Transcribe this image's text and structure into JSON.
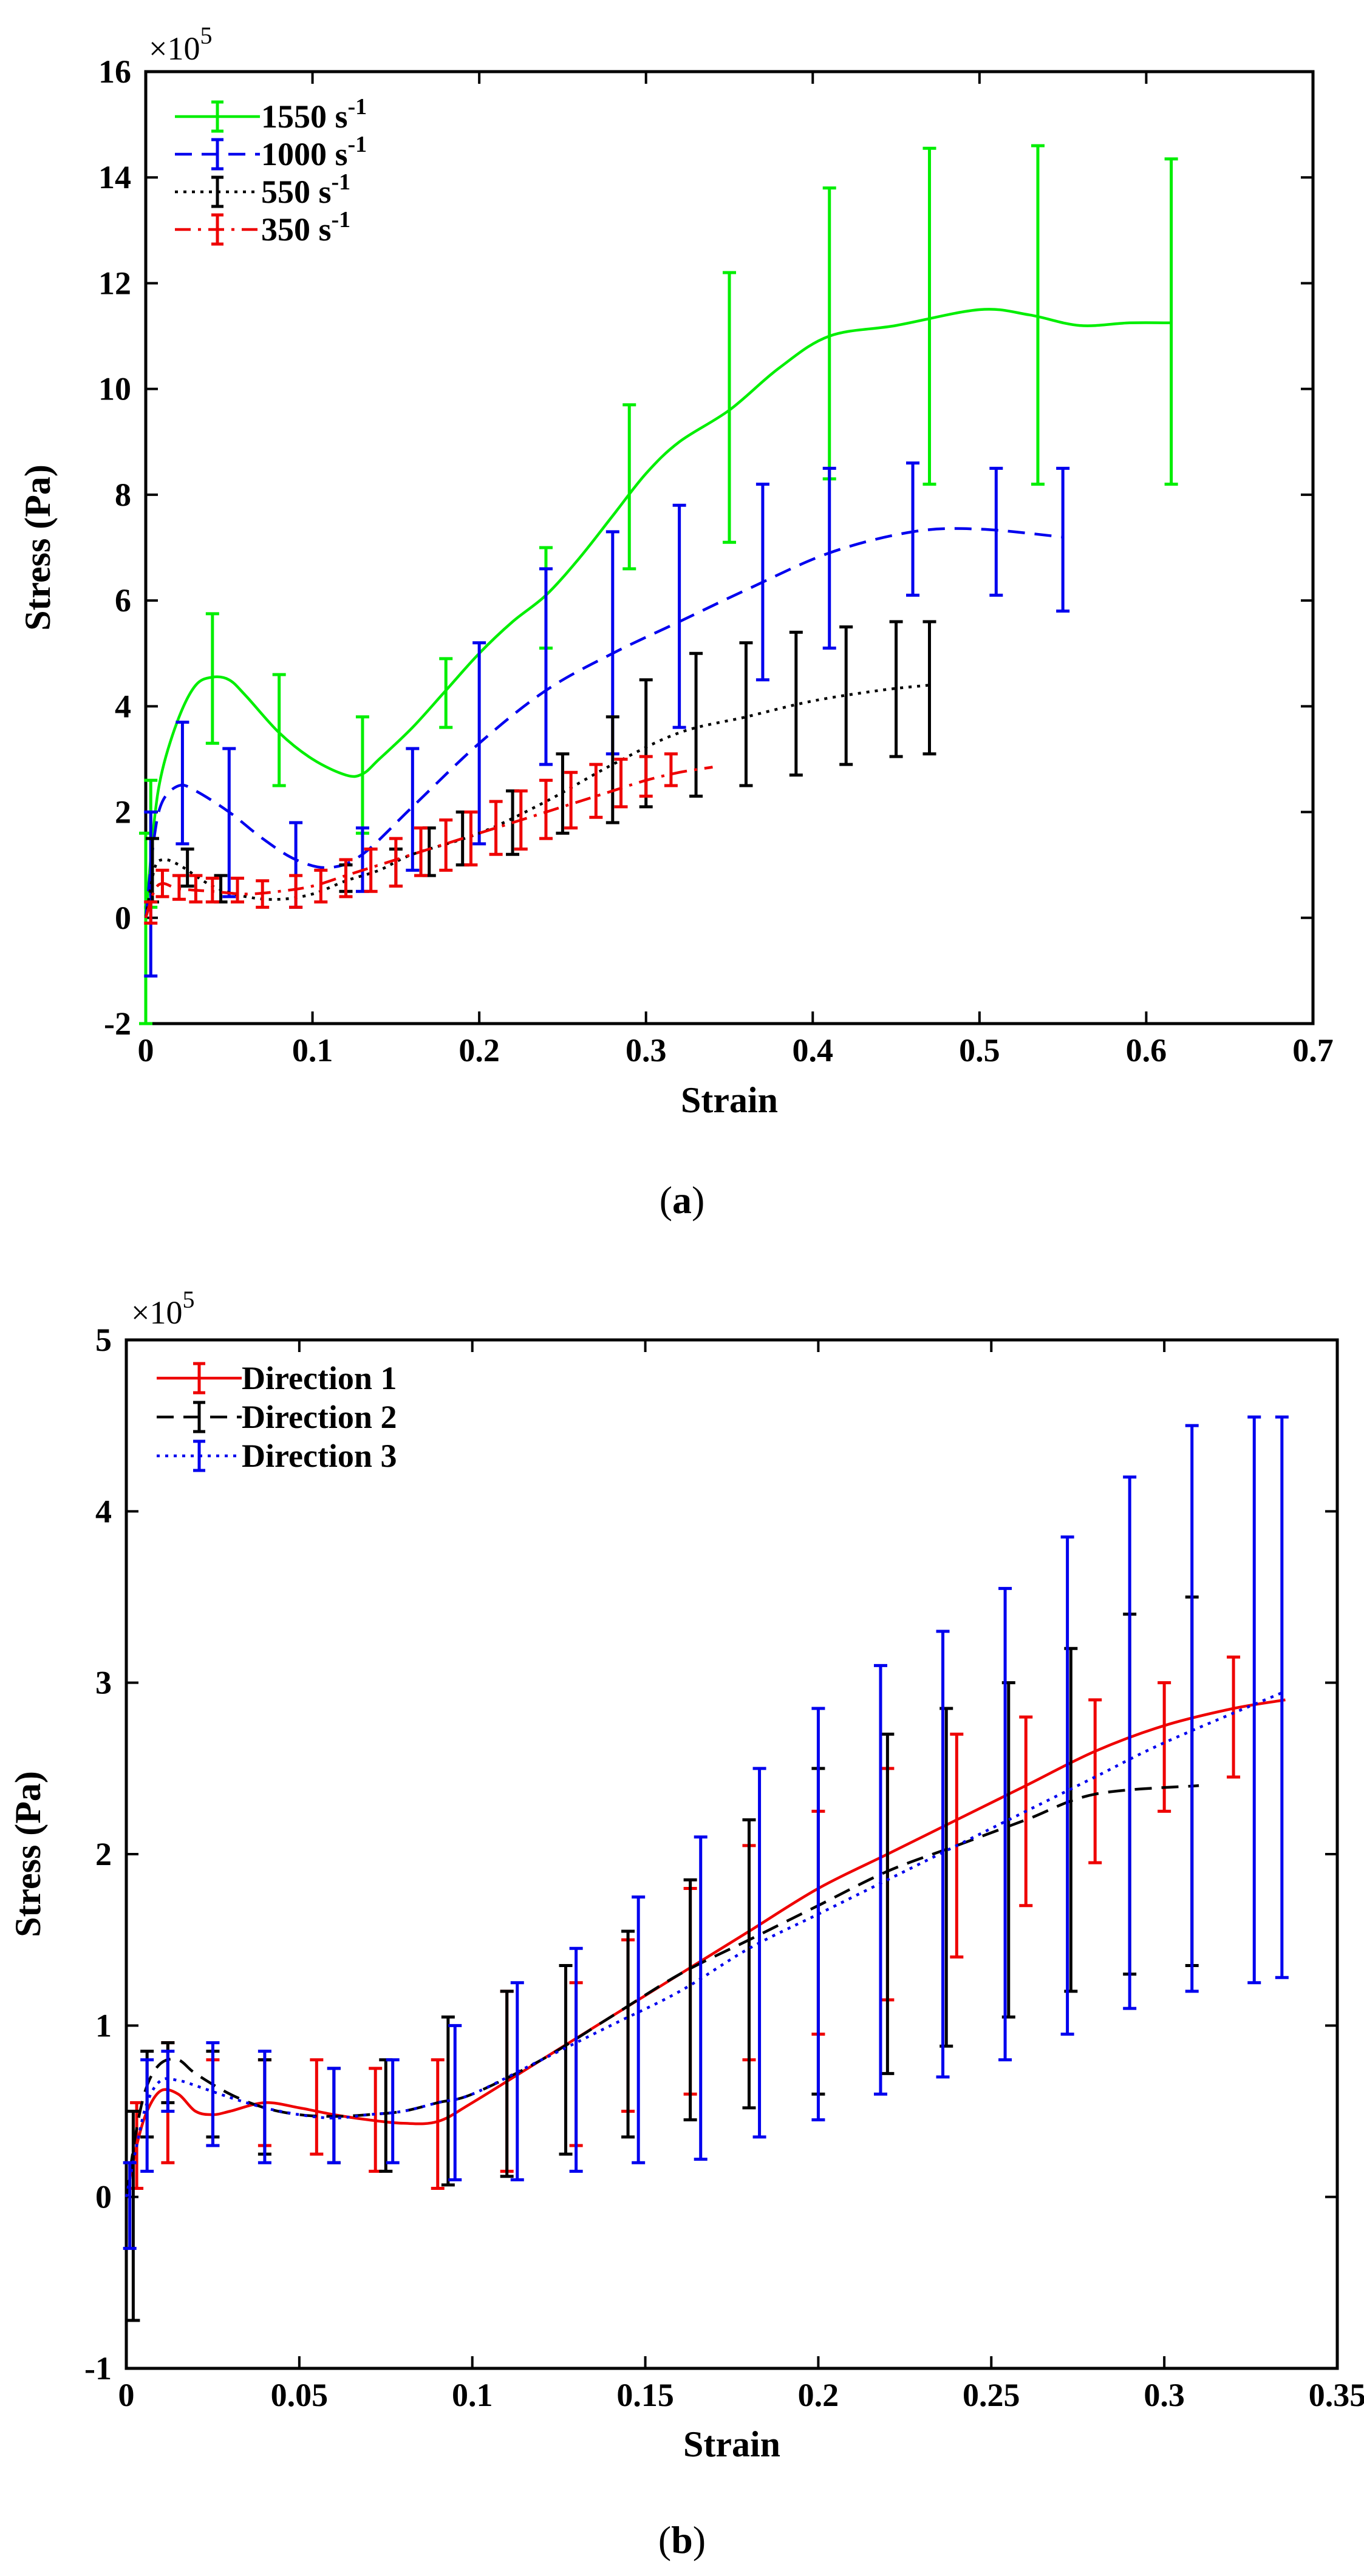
{
  "chart_data": [
    {
      "type": "line",
      "panel_label": "(a)",
      "caption_paren_open": "(",
      "caption_letter": "a",
      "caption_paren_close": ")",
      "xlabel": "Strain",
      "ylabel": "Stress (Pa)",
      "multiplier_prefix": "×10",
      "multiplier_exp": "5",
      "xlim": [
        0,
        0.7
      ],
      "ylim": [
        -2,
        16
      ],
      "xticks": [
        0,
        0.1,
        0.2,
        0.3,
        0.4,
        0.5,
        0.6,
        0.7
      ],
      "xtick_labels": [
        "0",
        "0.1",
        "0.2",
        "0.3",
        "0.4",
        "0.5",
        "0.6",
        "0.7"
      ],
      "yticks": [
        -2,
        0,
        2,
        4,
        6,
        8,
        10,
        12,
        14,
        16
      ],
      "ytick_labels": [
        "-2",
        "0",
        "2",
        "4",
        "6",
        "8",
        "10",
        "12",
        "14",
        "16"
      ],
      "legend_position": "top-left",
      "series": [
        {
          "name": "1550 s",
          "name_sup": "-1",
          "color": "#00ee00",
          "dash": "solid",
          "x": [
            0,
            0.005,
            0.01,
            0.02,
            0.03,
            0.04,
            0.05,
            0.06,
            0.08,
            0.1,
            0.12,
            0.13,
            0.14,
            0.16,
            0.18,
            0.2,
            0.22,
            0.24,
            0.26,
            0.28,
            0.3,
            0.32,
            0.35,
            0.38,
            0.41,
            0.45,
            0.5,
            0.53,
            0.56,
            0.59,
            0.615
          ],
          "y": [
            0,
            1.8,
            2.8,
            3.8,
            4.4,
            4.55,
            4.5,
            4.2,
            3.5,
            3.0,
            2.7,
            2.72,
            3.0,
            3.6,
            4.3,
            5.0,
            5.6,
            6.1,
            6.8,
            7.6,
            8.4,
            9.0,
            9.6,
            10.4,
            11.0,
            11.2,
            11.5,
            11.4,
            11.2,
            11.25,
            11.25
          ],
          "err_x": [
            0,
            0.003,
            0.04,
            0.08,
            0.13,
            0.18,
            0.24,
            0.29,
            0.35,
            0.41,
            0.47,
            0.535,
            0.615
          ],
          "err_y": [
            0,
            1.5,
            4.55,
            3.5,
            2.7,
            4.3,
            6.1,
            8.3,
            9.6,
            11.0,
            11.4,
            11.4,
            11.25
          ],
          "err_lo": [
            -2,
            0.2,
            3.3,
            2.5,
            1.6,
            3.6,
            5.1,
            6.6,
            7.1,
            8.3,
            8.2,
            8.2,
            8.2
          ],
          "err_hi": [
            1.6,
            2.6,
            5.75,
            4.6,
            3.8,
            4.9,
            7.0,
            9.7,
            12.2,
            13.8,
            14.55,
            14.6,
            14.35
          ]
        },
        {
          "name": "1000  s",
          "name_sup": "-1",
          "color": "#0000ee",
          "dash": "dashed",
          "x": [
            0,
            0.005,
            0.01,
            0.02,
            0.03,
            0.05,
            0.07,
            0.09,
            0.11,
            0.13,
            0.16,
            0.2,
            0.24,
            0.28,
            0.32,
            0.36,
            0.41,
            0.46,
            0.5,
            0.55
          ],
          "y": [
            0,
            1.5,
            2.2,
            2.5,
            2.4,
            2.0,
            1.5,
            1.1,
            0.95,
            1.2,
            2.1,
            3.3,
            4.3,
            5.0,
            5.6,
            6.2,
            6.9,
            7.3,
            7.35,
            7.2
          ],
          "err_x": [
            0.003,
            0.022,
            0.05,
            0.09,
            0.13,
            0.16,
            0.2,
            0.24,
            0.28,
            0.32,
            0.37,
            0.41,
            0.46,
            0.51,
            0.55
          ],
          "err_y": [
            0.5,
            2.5,
            2.1,
            1.1,
            1.2,
            2.1,
            3.3,
            4.3,
            5.0,
            5.6,
            6.4,
            6.9,
            7.3,
            7.35,
            7.2
          ],
          "err_lo": [
            -1.1,
            1.4,
            0.4,
            0.2,
            0.5,
            0.9,
            1.4,
            2.9,
            3.1,
            3.6,
            4.5,
            5.1,
            6.1,
            6.1,
            5.8
          ],
          "err_hi": [
            2.0,
            3.7,
            3.2,
            1.8,
            1.7,
            3.2,
            5.2,
            6.6,
            7.3,
            7.8,
            8.2,
            8.5,
            8.6,
            8.5,
            8.5
          ]
        },
        {
          "name": "550  s",
          "name_sup": "-1",
          "color": "#000000",
          "dash": "dotted",
          "x": [
            0,
            0.005,
            0.01,
            0.02,
            0.04,
            0.06,
            0.08,
            0.1,
            0.12,
            0.14,
            0.16,
            0.2,
            0.24,
            0.28,
            0.32,
            0.36,
            0.4,
            0.44,
            0.47
          ],
          "y": [
            0,
            0.9,
            1.1,
            1.0,
            0.6,
            0.4,
            0.35,
            0.45,
            0.7,
            0.9,
            1.2,
            1.6,
            2.2,
            2.9,
            3.5,
            3.8,
            4.1,
            4.3,
            4.4
          ],
          "err_x": [
            0.004,
            0.025,
            0.045,
            0.12,
            0.15,
            0.17,
            0.19,
            0.22,
            0.25,
            0.28,
            0.3,
            0.33,
            0.36,
            0.39,
            0.42,
            0.45,
            0.47
          ],
          "err_y": [
            0.9,
            1.0,
            0.55,
            0.75,
            1.0,
            1.3,
            1.5,
            1.8,
            2.2,
            2.8,
            3.1,
            3.6,
            3.85,
            4.05,
            4.2,
            4.3,
            4.35
          ],
          "err_lo": [
            0.3,
            0.6,
            0.3,
            0.5,
            0.6,
            0.8,
            1.0,
            1.2,
            1.6,
            1.8,
            2.1,
            2.3,
            2.5,
            2.7,
            2.9,
            3.05,
            3.1
          ],
          "err_hi": [
            1.5,
            1.3,
            0.8,
            1.0,
            1.3,
            1.7,
            2.0,
            2.4,
            3.1,
            3.8,
            4.5,
            5.0,
            5.2,
            5.4,
            5.5,
            5.6,
            5.6
          ]
        },
        {
          "name": "350  s",
          "name_sup": "-1",
          "color": "#ee0000",
          "dash": "dashdot",
          "x": [
            0,
            0.005,
            0.01,
            0.02,
            0.04,
            0.06,
            0.08,
            0.1,
            0.12,
            0.14,
            0.16,
            0.18,
            0.2,
            0.22,
            0.24,
            0.26,
            0.28,
            0.3,
            0.32,
            0.34
          ],
          "y": [
            0,
            0.5,
            0.65,
            0.55,
            0.5,
            0.45,
            0.5,
            0.6,
            0.8,
            1.0,
            1.2,
            1.4,
            1.6,
            1.8,
            2.0,
            2.2,
            2.4,
            2.6,
            2.75,
            2.85
          ],
          "err_x": [
            0.003,
            0.01,
            0.02,
            0.03,
            0.04,
            0.055,
            0.07,
            0.09,
            0.105,
            0.12,
            0.135,
            0.15,
            0.165,
            0.18,
            0.195,
            0.21,
            0.225,
            0.24,
            0.255,
            0.27,
            0.285,
            0.3,
            0.315
          ],
          "err_y": [
            0.1,
            0.65,
            0.55,
            0.55,
            0.5,
            0.5,
            0.45,
            0.5,
            0.6,
            0.75,
            0.9,
            1.05,
            1.2,
            1.35,
            1.5,
            1.65,
            1.85,
            2.0,
            2.15,
            2.35,
            2.5,
            2.65,
            2.8
          ],
          "err_lo": [
            -0.1,
            0.4,
            0.35,
            0.3,
            0.3,
            0.3,
            0.2,
            0.2,
            0.3,
            0.4,
            0.5,
            0.6,
            0.8,
            0.9,
            1.0,
            1.2,
            1.3,
            1.5,
            1.7,
            1.9,
            2.1,
            2.3,
            2.5
          ],
          "err_hi": [
            0.3,
            0.9,
            0.8,
            0.8,
            0.75,
            0.75,
            0.7,
            0.8,
            0.9,
            1.1,
            1.3,
            1.5,
            1.7,
            1.85,
            2.0,
            2.2,
            2.4,
            2.6,
            2.75,
            2.9,
            3.0,
            3.05,
            3.1
          ]
        }
      ]
    },
    {
      "type": "line",
      "panel_label": "(b)",
      "caption_paren_open": "(",
      "caption_letter": "b",
      "caption_paren_close": ")",
      "xlabel": "Strain",
      "ylabel": "Stress (Pa)",
      "multiplier_prefix": "×10",
      "multiplier_exp": "5",
      "xlim": [
        0,
        0.35
      ],
      "ylim": [
        -1,
        5
      ],
      "xticks": [
        0,
        0.05,
        0.1,
        0.15,
        0.2,
        0.25,
        0.3,
        0.35
      ],
      "xtick_labels": [
        "0",
        "0.05",
        "0.1",
        "0.15",
        "0.2",
        "0.25",
        "0.3",
        "0.35"
      ],
      "yticks": [
        -1,
        0,
        1,
        2,
        3,
        4,
        5
      ],
      "ytick_labels": [
        "-1",
        "0",
        "1",
        "2",
        "3",
        "4",
        "5"
      ],
      "legend_position": "top-left",
      "series": [
        {
          "name": "Direction 1",
          "name_sup": "",
          "color": "#ee0000",
          "dash": "solid",
          "x": [
            0,
            0.003,
            0.006,
            0.01,
            0.015,
            0.02,
            0.025,
            0.03,
            0.04,
            0.05,
            0.06,
            0.07,
            0.08,
            0.09,
            0.1,
            0.12,
            0.14,
            0.16,
            0.18,
            0.2,
            0.22,
            0.24,
            0.26,
            0.28,
            0.3,
            0.32,
            0.335
          ],
          "y": [
            0,
            0.3,
            0.5,
            0.62,
            0.6,
            0.5,
            0.48,
            0.5,
            0.55,
            0.52,
            0.48,
            0.45,
            0.43,
            0.44,
            0.55,
            0.8,
            1.05,
            1.3,
            1.55,
            1.8,
            2.0,
            2.2,
            2.4,
            2.6,
            2.75,
            2.85,
            2.9
          ],
          "err_x": [
            0.003,
            0.012,
            0.025,
            0.04,
            0.055,
            0.072,
            0.09,
            0.11,
            0.13,
            0.145,
            0.163,
            0.18,
            0.2,
            0.22,
            0.24,
            0.26,
            0.28,
            0.3,
            0.32
          ],
          "err_y": [
            0.3,
            0.6,
            0.5,
            0.55,
            0.52,
            0.45,
            0.43,
            0.65,
            0.85,
            1.0,
            1.2,
            1.45,
            1.6,
            1.8,
            2.0,
            2.25,
            2.4,
            2.6,
            2.8
          ],
          "err_lo": [
            0.05,
            0.2,
            0.3,
            0.3,
            0.25,
            0.15,
            0.05,
            0.15,
            0.3,
            0.5,
            0.6,
            0.8,
            0.95,
            1.15,
            1.4,
            1.7,
            1.95,
            2.25,
            2.45
          ],
          "err_hi": [
            0.55,
            0.9,
            0.8,
            0.8,
            0.8,
            0.75,
            0.8,
            1.2,
            1.25,
            1.5,
            1.8,
            2.05,
            2.25,
            2.5,
            2.7,
            2.8,
            2.9,
            3.0,
            3.15
          ]
        },
        {
          "name": "Direction 2",
          "name_sup": "",
          "color": "#000000",
          "dash": "dashed",
          "x": [
            0,
            0.003,
            0.006,
            0.01,
            0.015,
            0.02,
            0.03,
            0.04,
            0.05,
            0.06,
            0.07,
            0.08,
            0.09,
            0.1,
            0.12,
            0.14,
            0.16,
            0.18,
            0.2,
            0.22,
            0.24,
            0.26,
            0.28,
            0.31
          ],
          "y": [
            0,
            0.4,
            0.65,
            0.78,
            0.8,
            0.72,
            0.6,
            0.52,
            0.48,
            0.47,
            0.48,
            0.5,
            0.55,
            0.6,
            0.8,
            1.05,
            1.3,
            1.5,
            1.7,
            1.9,
            2.05,
            2.2,
            2.35,
            2.4
          ],
          "err_x": [
            0.002,
            0.006,
            0.012,
            0.025,
            0.04,
            0.06,
            0.075,
            0.093,
            0.11,
            0.127,
            0.145,
            0.163,
            0.18,
            0.2,
            0.22,
            0.237,
            0.255,
            0.273,
            0.29,
            0.308
          ],
          "err_y": [
            0.1,
            0.6,
            0.75,
            0.6,
            0.52,
            0.48,
            0.47,
            0.55,
            0.65,
            0.8,
            0.95,
            1.15,
            1.4,
            1.55,
            1.75,
            1.95,
            2.1,
            2.25,
            2.3,
            2.4
          ],
          "err_lo": [
            -0.72,
            0.35,
            0.55,
            0.35,
            0.25,
            0.2,
            0.15,
            0.07,
            0.12,
            0.25,
            0.35,
            0.45,
            0.52,
            0.6,
            0.72,
            0.88,
            1.05,
            1.2,
            1.3,
            1.35
          ],
          "err_hi": [
            0.5,
            0.85,
            0.9,
            0.85,
            0.8,
            0.75,
            0.8,
            1.05,
            1.2,
            1.35,
            1.55,
            1.85,
            2.2,
            2.5,
            2.7,
            2.85,
            3.0,
            3.2,
            3.4,
            3.5
          ]
        },
        {
          "name": "Direction 3",
          "name_sup": "",
          "color": "#0000ee",
          "dash": "dotted",
          "x": [
            0,
            0.003,
            0.006,
            0.01,
            0.015,
            0.02,
            0.03,
            0.04,
            0.05,
            0.06,
            0.07,
            0.08,
            0.09,
            0.1,
            0.12,
            0.14,
            0.16,
            0.18,
            0.2,
            0.22,
            0.24,
            0.26,
            0.28,
            0.3,
            0.335
          ],
          "y": [
            0,
            0.3,
            0.55,
            0.68,
            0.68,
            0.65,
            0.58,
            0.52,
            0.48,
            0.46,
            0.48,
            0.5,
            0.55,
            0.6,
            0.8,
            1.0,
            1.2,
            1.45,
            1.65,
            1.85,
            2.05,
            2.25,
            2.45,
            2.65,
            2.95
          ],
          "err_x": [
            0.001,
            0.006,
            0.012,
            0.025,
            0.04,
            0.06,
            0.077,
            0.095,
            0.113,
            0.13,
            0.148,
            0.166,
            0.183,
            0.2,
            0.218,
            0.236,
            0.254,
            0.272,
            0.29,
            0.308,
            0.326,
            0.334
          ],
          "err_y": [
            0.0,
            0.5,
            0.68,
            0.58,
            0.52,
            0.48,
            0.48,
            0.55,
            0.65,
            0.8,
            0.95,
            1.15,
            1.4,
            1.6,
            1.8,
            2.0,
            2.2,
            2.45,
            2.6,
            2.75,
            2.9,
            2.95
          ],
          "err_lo": [
            -0.3,
            0.15,
            0.5,
            0.3,
            0.2,
            0.2,
            0.2,
            0.1,
            0.1,
            0.15,
            0.2,
            0.22,
            0.35,
            0.45,
            0.6,
            0.7,
            0.8,
            0.95,
            1.1,
            1.2,
            1.25,
            1.28
          ],
          "err_hi": [
            0.2,
            0.8,
            0.85,
            0.9,
            0.85,
            0.75,
            0.8,
            1.0,
            1.25,
            1.45,
            1.75,
            2.1,
            2.5,
            2.85,
            3.1,
            3.3,
            3.55,
            3.85,
            4.2,
            4.5,
            4.55,
            4.55
          ]
        }
      ]
    }
  ]
}
